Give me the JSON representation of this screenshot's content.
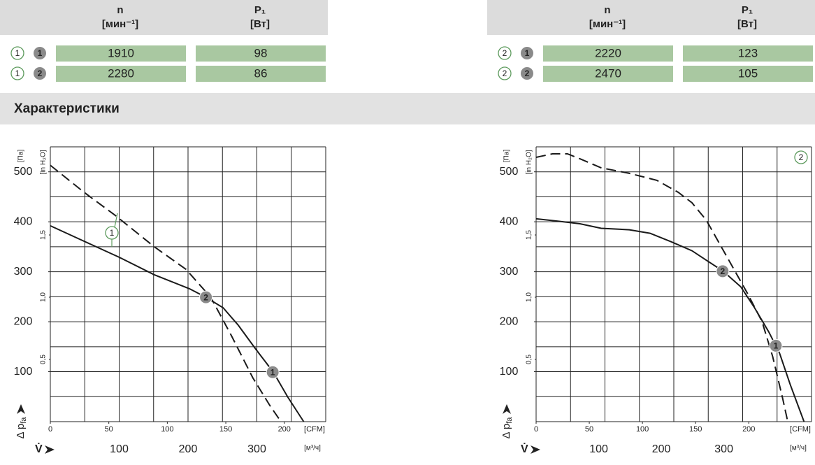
{
  "tables": [
    {
      "columns": [
        {
          "label": "n",
          "unit": "[мин⁻¹]"
        },
        {
          "label": "P₁",
          "unit": "[Вт]"
        }
      ],
      "rows": [
        {
          "set": "1",
          "point": "1",
          "values": [
            1910,
            98
          ]
        },
        {
          "set": "1",
          "point": "2",
          "values": [
            2280,
            86
          ]
        }
      ]
    },
    {
      "columns": [
        {
          "label": "n",
          "unit": "[мин⁻¹]"
        },
        {
          "label": "P₁",
          "unit": "[Вт]"
        }
      ],
      "rows": [
        {
          "set": "2",
          "point": "1",
          "values": [
            2220,
            123
          ]
        },
        {
          "set": "2",
          "point": "2",
          "values": [
            2470,
            105
          ]
        }
      ]
    }
  ],
  "section_title": "Характеристики",
  "chart_data": [
    {
      "type": "line",
      "annotation": "1",
      "ylabel": "Δ p",
      "ylabel_sub": "fa",
      "yunit": "[Па]",
      "ylim": [
        0,
        550
      ],
      "yticks": [
        100,
        200,
        300,
        400,
        500
      ],
      "y2unit": "[in H₂O]",
      "y2lim": [
        0,
        2.208
      ],
      "y2ticks": [
        {
          "value": 0.5,
          "label": "0,5"
        },
        {
          "value": 1.0,
          "label": "1,0"
        },
        {
          "value": 1.5,
          "label": "1,5"
        }
      ],
      "xlabel": "V̇",
      "xunit": "[м³/ч]",
      "xlim": [
        0,
        400
      ],
      "xticks": [
        100,
        200,
        300
      ],
      "x2unit": "[CFM]",
      "x2lim": [
        0,
        235.4
      ],
      "x2ticks": [
        0,
        50,
        100,
        150,
        200
      ],
      "series": [
        {
          "color": "#1a1a1a",
          "dash": true,
          "x": [
            0,
            49,
            95,
            151,
            197,
            233,
            263,
            294,
            319,
            335
          ],
          "values": [
            513,
            459,
            412,
            350,
            305,
            249,
            172,
            88,
            32,
            0
          ]
        },
        {
          "color": "#1a1a1a",
          "dash": false,
          "x": [
            0,
            49,
            100,
            151,
            202,
            226,
            251,
            273,
            299,
            324,
            345,
            368
          ],
          "values": [
            392,
            361,
            329,
            294,
            266,
            249,
            228,
            193,
            144,
            99,
            49,
            0
          ]
        }
      ],
      "points": [
        {
          "label": "2",
          "x": 226,
          "y": 249
        },
        {
          "label": "1",
          "x": 323,
          "y": 99
        }
      ]
    },
    {
      "type": "line",
      "annotation": "2",
      "ylabel": "Δ p",
      "ylabel_sub": "fa",
      "yunit": "[Па]",
      "ylim": [
        0,
        550
      ],
      "yticks": [
        100,
        200,
        300,
        400,
        500
      ],
      "y2unit": "[in H₂O]",
      "y2lim": [
        0,
        2.208
      ],
      "y2ticks": [
        {
          "value": 0.5,
          "label": "0,5"
        },
        {
          "value": 1.0,
          "label": "1,0"
        },
        {
          "value": 1.5,
          "label": "1,5"
        }
      ],
      "xlabel": "V̇",
      "xunit": "[м³/ч]",
      "xlim": [
        0,
        440
      ],
      "xticks": [
        100,
        200,
        300
      ],
      "x2unit": "[CFM]",
      "x2lim": [
        0,
        259
      ],
      "x2ticks": [
        0,
        50,
        100,
        150,
        200
      ],
      "series": [
        {
          "color": "#1a1a1a",
          "dash": true,
          "x": [
            0,
            26,
            50,
            70,
            104,
            149,
            193,
            227,
            249,
            272,
            294,
            316,
            338,
            361,
            378,
            394,
            402
          ],
          "values": [
            529,
            536,
            536,
            526,
            508,
            497,
            483,
            459,
            438,
            403,
            354,
            305,
            256,
            200,
            130,
            46,
            0
          ]
        },
        {
          "color": "#1a1a1a",
          "dash": false,
          "x": [
            0,
            37,
            70,
            104,
            149,
            182,
            216,
            249,
            272,
            299,
            327,
            349,
            372,
            389,
            406,
            428
          ],
          "values": [
            406,
            401,
            396,
            387,
            384,
            377,
            360,
            342,
            323,
            301,
            270,
            228,
            179,
            137,
            74,
            0
          ]
        }
      ],
      "points": [
        {
          "label": "2",
          "x": 298,
          "y": 301
        },
        {
          "label": "1",
          "x": 383,
          "y": 152
        }
      ]
    }
  ]
}
